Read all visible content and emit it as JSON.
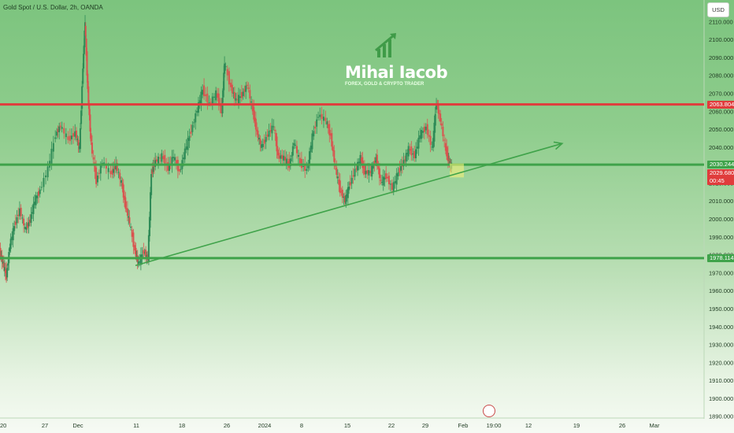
{
  "header": {
    "title": "Gold Spot / U.S. Dollar, 2h, OANDA",
    "currency": "USD"
  },
  "logo": {
    "name": "Mihai Iacob",
    "tagline": "FOREX, GOLD & CRYPTO TRADER"
  },
  "colors": {
    "resistance": "#e03c3c",
    "support": "#3fa34a",
    "trendline": "#3fa34a",
    "candle_up": "#2e8b57",
    "candle_down": "#d9534f",
    "highlight": "#f2f07a"
  },
  "chart_data": {
    "type": "line",
    "ylabel": "",
    "ylim": [
      1889,
      2122
    ],
    "y_ticks": [
      2110,
      2100,
      2090,
      2080,
      2070,
      2060,
      2050,
      2040,
      2030,
      2020,
      2010,
      2000,
      1990,
      1980,
      1970,
      1960,
      1950,
      1940,
      1930,
      1920,
      1910,
      1900,
      1890
    ],
    "y_tick_labels": [
      "2110.000",
      "2100.000",
      "2090.000",
      "2080.000",
      "2070.000",
      "2060.000",
      "2050.000",
      "2040.000",
      "2030.000",
      "2020.000",
      "2010.000",
      "2000.000",
      "1990.000",
      "1980.000",
      "1970.000",
      "1960.000",
      "1950.000",
      "1940.000",
      "1930.000",
      "1920.000",
      "1910.000",
      "1900.000",
      "1890.000"
    ],
    "x_tick_labels": [
      "20",
      "27",
      "Dec",
      "11",
      "18",
      "26",
      "2024",
      "8",
      "15",
      "22",
      "29",
      "Feb",
      "19:00",
      "12",
      "19",
      "26",
      "Mar"
    ],
    "horizontal_levels": [
      {
        "value": 2063.804,
        "label": "2063.804",
        "role": "resistance"
      },
      {
        "value": 2030.244,
        "label": "2030.244",
        "role": "support"
      },
      {
        "value": 1978.114,
        "label": "1978.114",
        "role": "support"
      }
    ],
    "current_price": {
      "value": 2029.68,
      "label": "2029.680",
      "countdown": "00:45"
    },
    "trendline": {
      "from": [
        20.0,
        1974
      ],
      "to": [
        83.0,
        2042
      ],
      "arrow": true
    },
    "price_series": {
      "name": "",
      "points": [
        [
          0.0,
          1982
        ],
        [
          0.5,
          1975
        ],
        [
          1.0,
          1968
        ],
        [
          1.5,
          1985
        ],
        [
          2.2,
          1996
        ],
        [
          3.0,
          2005
        ],
        [
          3.8,
          1994
        ],
        [
          4.5,
          1999
        ],
        [
          5.2,
          2010
        ],
        [
          6.0,
          2016
        ],
        [
          7.2,
          2028
        ],
        [
          8.3,
          2047
        ],
        [
          9.0,
          2052
        ],
        [
          10.2,
          2044
        ],
        [
          11.2,
          2048
        ],
        [
          11.8,
          2039
        ],
        [
          12.3,
          2085
        ],
        [
          12.6,
          2110
        ],
        [
          13.0,
          2072
        ],
        [
          13.5,
          2042
        ],
        [
          14.3,
          2021
        ],
        [
          15.2,
          2032
        ],
        [
          16.5,
          2025
        ],
        [
          17.2,
          2030
        ],
        [
          18.0,
          2020
        ],
        [
          18.6,
          2007
        ],
        [
          19.2,
          1998
        ],
        [
          20.0,
          1982
        ],
        [
          20.5,
          1975
        ],
        [
          21.3,
          1982
        ],
        [
          21.9,
          1978
        ],
        [
          22.4,
          2025
        ],
        [
          23.0,
          2032
        ],
        [
          24.0,
          2035
        ],
        [
          24.9,
          2028
        ],
        [
          25.7,
          2035
        ],
        [
          26.6,
          2026
        ],
        [
          27.4,
          2038
        ],
        [
          28.3,
          2049
        ],
        [
          29.2,
          2061
        ],
        [
          30.0,
          2072
        ],
        [
          31.0,
          2064
        ],
        [
          32.0,
          2070
        ],
        [
          32.8,
          2060
        ],
        [
          33.2,
          2087
        ],
        [
          34.2,
          2073
        ],
        [
          34.9,
          2066
        ],
        [
          35.8,
          2069
        ],
        [
          36.6,
          2075
        ],
        [
          37.4,
          2060
        ],
        [
          38.0,
          2048
        ],
        [
          38.7,
          2040
        ],
        [
          39.6,
          2047
        ],
        [
          40.5,
          2052
        ],
        [
          41.1,
          2035
        ],
        [
          42.0,
          2034
        ],
        [
          42.8,
          2030
        ],
        [
          43.5,
          2043
        ],
        [
          44.4,
          2031
        ],
        [
          45.4,
          2027
        ],
        [
          46.2,
          2046
        ],
        [
          47.1,
          2058
        ],
        [
          48.2,
          2055
        ],
        [
          48.9,
          2046
        ],
        [
          49.6,
          2028
        ],
        [
          50.3,
          2016
        ],
        [
          51.0,
          2010
        ],
        [
          51.6,
          2018
        ],
        [
          52.5,
          2027
        ],
        [
          53.3,
          2034
        ],
        [
          53.9,
          2026
        ],
        [
          54.8,
          2026
        ],
        [
          55.6,
          2034
        ],
        [
          56.3,
          2020
        ],
        [
          57.1,
          2024
        ],
        [
          58.0,
          2017
        ],
        [
          58.9,
          2026
        ],
        [
          59.7,
          2032
        ],
        [
          60.4,
          2039
        ],
        [
          61.3,
          2035
        ],
        [
          62.1,
          2047
        ],
        [
          63.0,
          2051
        ],
        [
          63.9,
          2039
        ],
        [
          64.5,
          2065
        ],
        [
          65.1,
          2055
        ],
        [
          65.9,
          2038
        ],
        [
          66.3,
          2032
        ],
        [
          66.7,
          2029.68
        ]
      ]
    }
  }
}
